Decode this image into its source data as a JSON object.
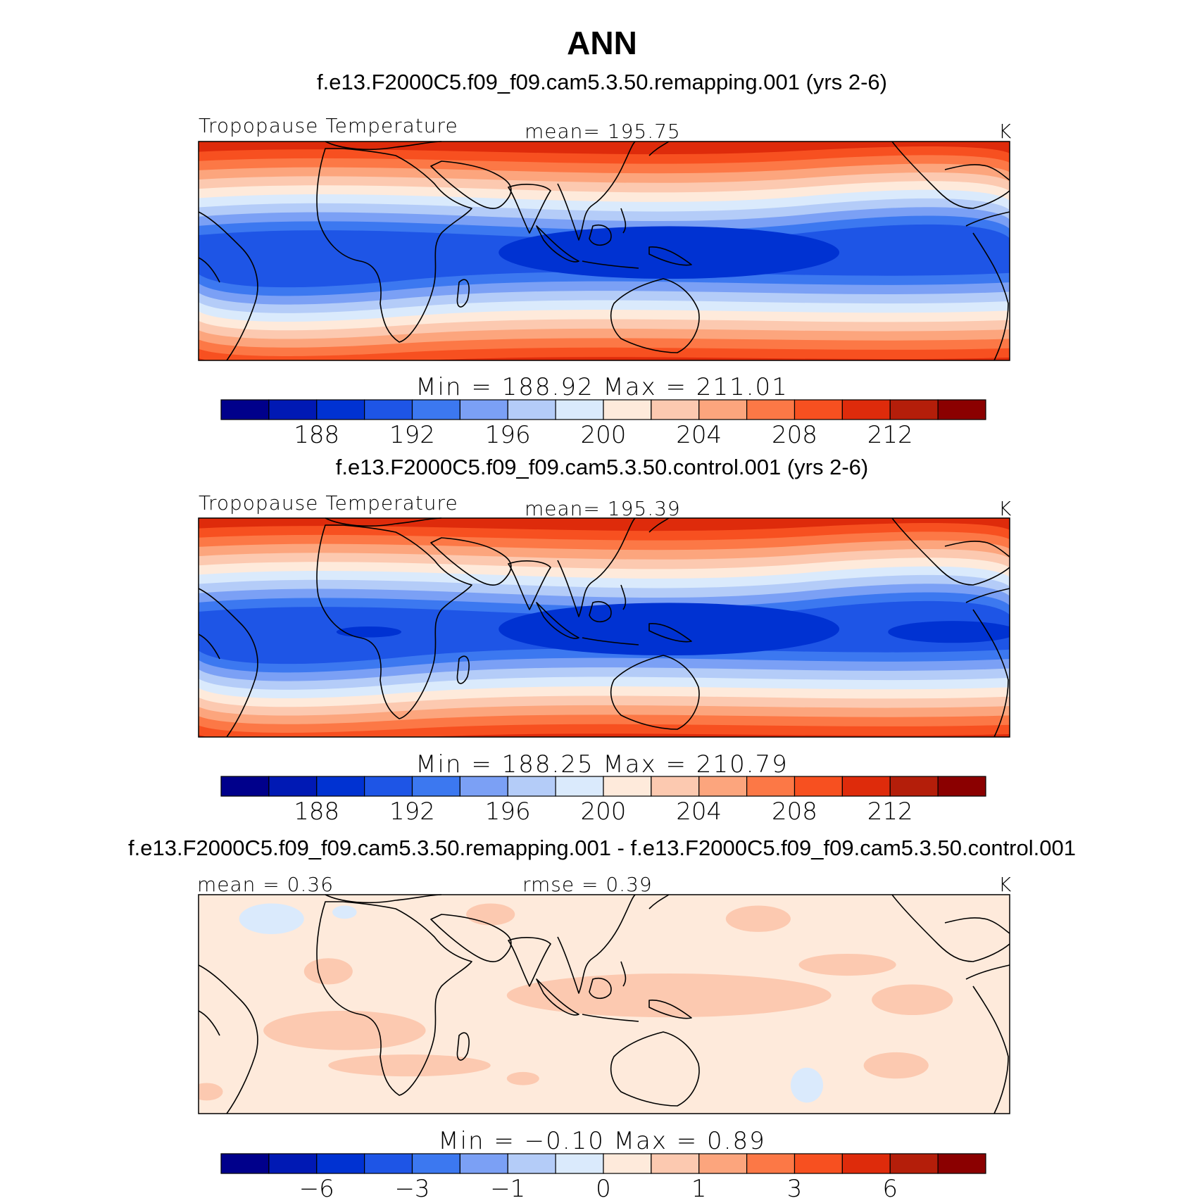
{
  "figure_title": "ANN",
  "chart_data": [
    {
      "type": "heatmap",
      "title": "f.e13.F2000C5.f09_f09.cam5.3.50.remapping.001 (yrs 2-6)",
      "variable": "Tropopause Temperature",
      "stat_label": "mean= 195.75",
      "units": "K",
      "min_max_text": "Min  =  188.92  Max  =  211.01",
      "min": 188.92,
      "max": 211.01,
      "mean": 195.75,
      "colorbar_ticks": [
        "188",
        "192",
        "196",
        "200",
        "204",
        "208",
        "212"
      ],
      "colorbar_levels": [
        186,
        188,
        190,
        192,
        194,
        196,
        198,
        200,
        202,
        204,
        206,
        208,
        210,
        212
      ],
      "warm_pool_min": 188.92
    },
    {
      "type": "heatmap",
      "title": "f.e13.F2000C5.f09_f09.cam5.3.50.control.001 (yrs 2-6)",
      "variable": "Tropopause Temperature",
      "stat_label": "mean= 195.39",
      "units": "K",
      "min_max_text": "Min  =  188.25  Max  =  210.79",
      "min": 188.25,
      "max": 210.79,
      "mean": 195.39,
      "colorbar_ticks": [
        "188",
        "192",
        "196",
        "200",
        "204",
        "208",
        "212"
      ],
      "colorbar_levels": [
        186,
        188,
        190,
        192,
        194,
        196,
        198,
        200,
        202,
        204,
        206,
        208,
        210,
        212
      ],
      "warm_pool_min": 188.25
    },
    {
      "type": "heatmap",
      "title": "f.e13.F2000C5.f09_f09.cam5.3.50.remapping.001 - f.e13.F2000C5.f09_f09.cam5.3.50.control.001",
      "stat_left": "mean =    0.36",
      "stat_right": "rmse =    0.39",
      "units": "K",
      "min_max_text": "Min  =   −0.10  Max  =     0.89",
      "min": -0.1,
      "max": 0.89,
      "mean": 0.36,
      "rmse": 0.39,
      "colorbar_ticks": [
        "−6",
        "−3",
        "−1",
        "0",
        "1",
        "3",
        "6"
      ],
      "colorbar_levels": [
        -8,
        -6,
        -4,
        -3,
        -2,
        -1,
        -0.5,
        0,
        0.5,
        1,
        2,
        3,
        4,
        6,
        8
      ]
    }
  ],
  "palette": [
    "#00008b",
    "#0019b4",
    "#0032d2",
    "#1e55e6",
    "#3c78f0",
    "#7ba0f5",
    "#b4ccf8",
    "#daeafc",
    "#feeadb",
    "#fcc9b0",
    "#fca57d",
    "#fc7846",
    "#f75020",
    "#de2b0b",
    "#b41e0a",
    "#8b0000"
  ]
}
